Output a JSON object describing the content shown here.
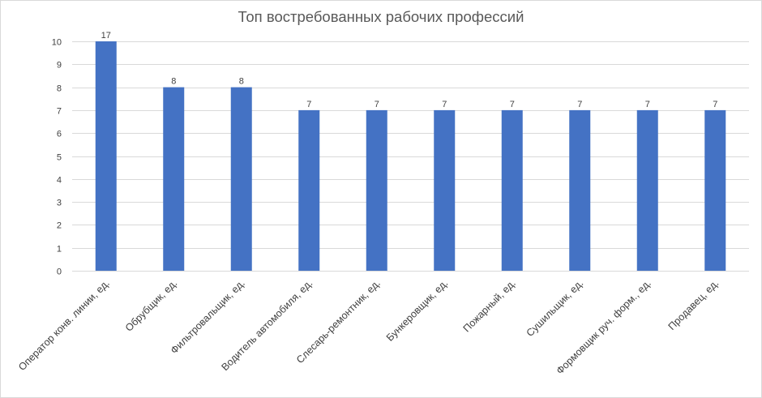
{
  "chart_data": {
    "type": "bar",
    "title": "Топ востребованных рабочих профессий",
    "xlabel": "",
    "ylabel": "",
    "ylim": [
      0,
      10
    ],
    "yticks": [
      0,
      1,
      2,
      3,
      4,
      5,
      6,
      7,
      8,
      9,
      10
    ],
    "grid": true,
    "legend": "none",
    "bar_color": "#4472C4",
    "categories": [
      "Оператор конв. линии, ед.",
      "Обрубщик, ед.",
      "Фильтровальщик, ед.",
      "Водитель автомобиля, ед.",
      "Слесарь-ремонтник, ед.",
      "Бункеровщик, ед.",
      "Пожарный, ед.",
      "Сушильщик, ед.",
      "Формовщик руч. форм., ед.",
      "Продавец, ед."
    ],
    "values": [
      17,
      8,
      8,
      7,
      7,
      7,
      7,
      7,
      7,
      7
    ],
    "data_labels": [
      "17",
      "8",
      "8",
      "7",
      "7",
      "7",
      "7",
      "7",
      "7",
      "7"
    ]
  }
}
